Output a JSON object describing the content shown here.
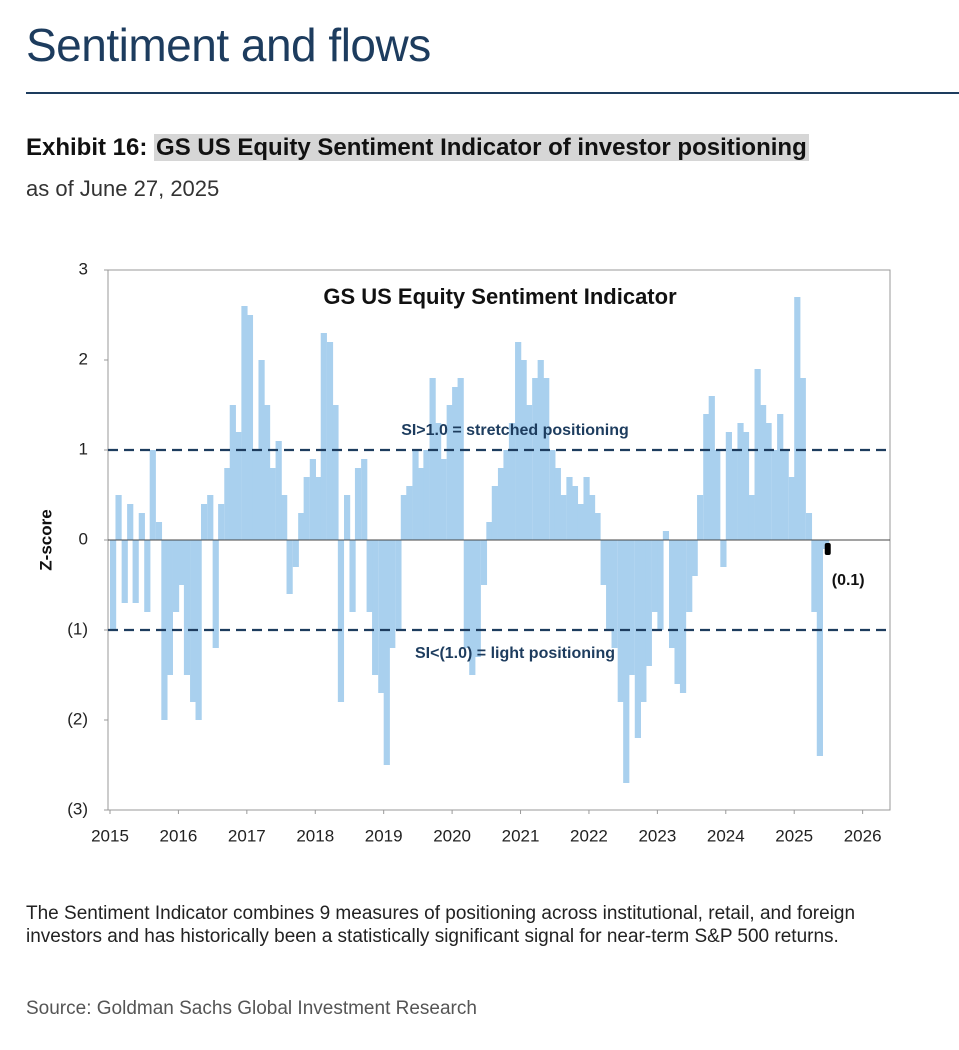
{
  "header": {
    "title": "Sentiment and flows"
  },
  "exhibit": {
    "label": "Exhibit 16:",
    "title": "GS US Equity Sentiment Indicator of investor positioning",
    "subtitle": "as of June 27, 2025"
  },
  "chart_data": {
    "type": "bar",
    "title": "GS US Equity Sentiment Indicator",
    "ylabel": "Z-score",
    "color": "#a9d0ee",
    "x": [
      2015.0,
      2015.08,
      2015.17,
      2015.25,
      2015.33,
      2015.42,
      2015.5,
      2015.58,
      2015.67,
      2015.75,
      2015.83,
      2015.92,
      2016.0,
      2016.08,
      2016.17,
      2016.25,
      2016.33,
      2016.42,
      2016.5,
      2016.58,
      2016.67,
      2016.75,
      2016.83,
      2016.92,
      2017.0,
      2017.08,
      2017.17,
      2017.25,
      2017.33,
      2017.42,
      2017.5,
      2017.58,
      2017.67,
      2017.75,
      2017.83,
      2017.92,
      2018.0,
      2018.08,
      2018.17,
      2018.25,
      2018.33,
      2018.42,
      2018.5,
      2018.58,
      2018.67,
      2018.75,
      2018.83,
      2018.92,
      2019.0,
      2019.08,
      2019.17,
      2019.25,
      2019.33,
      2019.42,
      2019.5,
      2019.58,
      2019.67,
      2019.75,
      2019.83,
      2019.92,
      2020.0,
      2020.08,
      2020.17,
      2020.25,
      2020.33,
      2020.42,
      2020.5,
      2020.58,
      2020.67,
      2020.75,
      2020.83,
      2020.92,
      2021.0,
      2021.08,
      2021.17,
      2021.25,
      2021.33,
      2021.42,
      2021.5,
      2021.58,
      2021.67,
      2021.75,
      2021.83,
      2021.92,
      2022.0,
      2022.08,
      2022.17,
      2022.25,
      2022.33,
      2022.42,
      2022.5,
      2022.58,
      2022.67,
      2022.75,
      2022.83,
      2022.92,
      2023.0,
      2023.08,
      2023.17,
      2023.25,
      2023.33,
      2023.42,
      2023.5,
      2023.58,
      2023.67,
      2023.75,
      2023.83,
      2023.92,
      2024.0,
      2024.08,
      2024.17,
      2024.25,
      2024.33,
      2024.42,
      2024.5,
      2024.58,
      2024.67,
      2024.75,
      2024.83,
      2024.92,
      2025.0,
      2025.08,
      2025.17,
      2025.25,
      2025.33,
      2025.42
    ],
    "values": [
      -1.0,
      0.5,
      -0.7,
      0.4,
      -0.7,
      0.3,
      -0.8,
      1.0,
      0.2,
      -2.0,
      -1.5,
      -0.8,
      -0.5,
      -1.5,
      -1.8,
      -2.0,
      0.4,
      0.5,
      -1.2,
      0.4,
      0.8,
      1.5,
      1.2,
      2.6,
      2.5,
      1.0,
      2.0,
      1.5,
      0.8,
      1.1,
      0.5,
      -0.6,
      -0.3,
      0.3,
      0.7,
      0.9,
      0.7,
      2.3,
      2.2,
      1.5,
      -1.8,
      0.5,
      -0.8,
      0.8,
      0.9,
      -0.8,
      -1.5,
      -1.7,
      -2.5,
      -1.2,
      -1.0,
      0.5,
      0.6,
      1.0,
      0.8,
      1.0,
      1.8,
      1.3,
      0.9,
      1.5,
      1.7,
      1.8,
      -1.2,
      -1.5,
      -1.3,
      -0.5,
      0.2,
      0.6,
      0.8,
      1.0,
      1.3,
      2.2,
      2.0,
      1.5,
      1.8,
      2.0,
      1.8,
      1.0,
      0.8,
      0.5,
      0.7,
      0.6,
      0.4,
      0.7,
      0.5,
      0.3,
      -0.5,
      -1.0,
      -1.2,
      -1.8,
      -2.7,
      -1.5,
      -2.2,
      -1.8,
      -1.4,
      -0.8,
      -1.0,
      0.1,
      -1.2,
      -1.6,
      -1.7,
      -0.8,
      -0.4,
      0.5,
      1.4,
      1.6,
      1.0,
      -0.3,
      1.2,
      1.0,
      1.3,
      1.2,
      0.5,
      1.9,
      1.5,
      1.3,
      1.0,
      1.4,
      1.0,
      0.7,
      2.7,
      1.8,
      0.3,
      -0.8,
      -2.4,
      -0.1
    ],
    "xlim": [
      2015,
      2026.4
    ],
    "ylim": [
      -3,
      3
    ],
    "xticks": [
      2015,
      2016,
      2017,
      2018,
      2019,
      2020,
      2021,
      2022,
      2023,
      2024,
      2025,
      2026
    ],
    "yticks": [
      {
        "value": -3,
        "label": "(3)"
      },
      {
        "value": -2,
        "label": "(2)"
      },
      {
        "value": -1,
        "label": "(1)"
      },
      0,
      1,
      2,
      3
    ],
    "reference_lines": [
      {
        "value": 1,
        "label": "SI>1.0 = stretched positioning"
      },
      {
        "value": -1,
        "label": "SI<(1.0) = light positioning"
      }
    ],
    "marker": {
      "x": 2025.49,
      "value": -0.1,
      "label": "(0.1)",
      "color": "#000000"
    }
  },
  "footnote": "The Sentiment Indicator combines 9 measures of positioning across institutional, retail, and foreign investors and has historically been a statistically significant signal for near-term S&P 500 returns.",
  "source": "Source: Goldman Sachs Global Investment Research"
}
